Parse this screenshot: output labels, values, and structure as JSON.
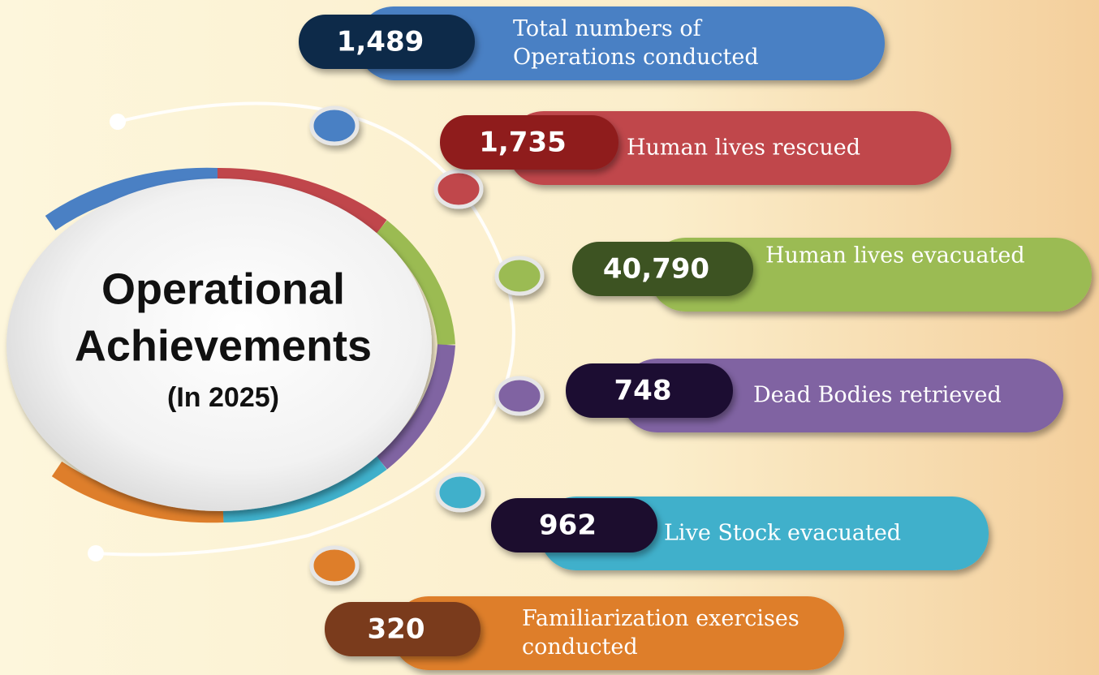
{
  "title": {
    "line1": "Operational",
    "line2": "Achievements",
    "line3": "(In 2025)"
  },
  "items": [
    {
      "value": "1,489",
      "label": [
        "Total numbers of",
        "Operations conducted"
      ],
      "color": "#4a80c4",
      "pill": "#0f2a4a"
    },
    {
      "value": "1,735",
      "label": [
        "Human lives rescued"
      ],
      "color": "#c0464b",
      "pill": "#8f1c1f"
    },
    {
      "value": "40,790",
      "label": [
        "Human lives evacuated"
      ],
      "color": "#9bbb52",
      "pill": "#3d5224"
    },
    {
      "value": "748",
      "label": [
        "Dead Bodies retrieved"
      ],
      "color": "#8064a2",
      "pill": "#1f0f33"
    },
    {
      "value": "962",
      "label": [
        "Live Stock evacuated"
      ],
      "color": "#3fb0cb",
      "pill": "#1c0d2e"
    },
    {
      "value": "320",
      "label": [
        "Familiarization exercises",
        "conducted"
      ],
      "color": "#de7e2b",
      "pill": "#7a3a1a"
    }
  ]
}
